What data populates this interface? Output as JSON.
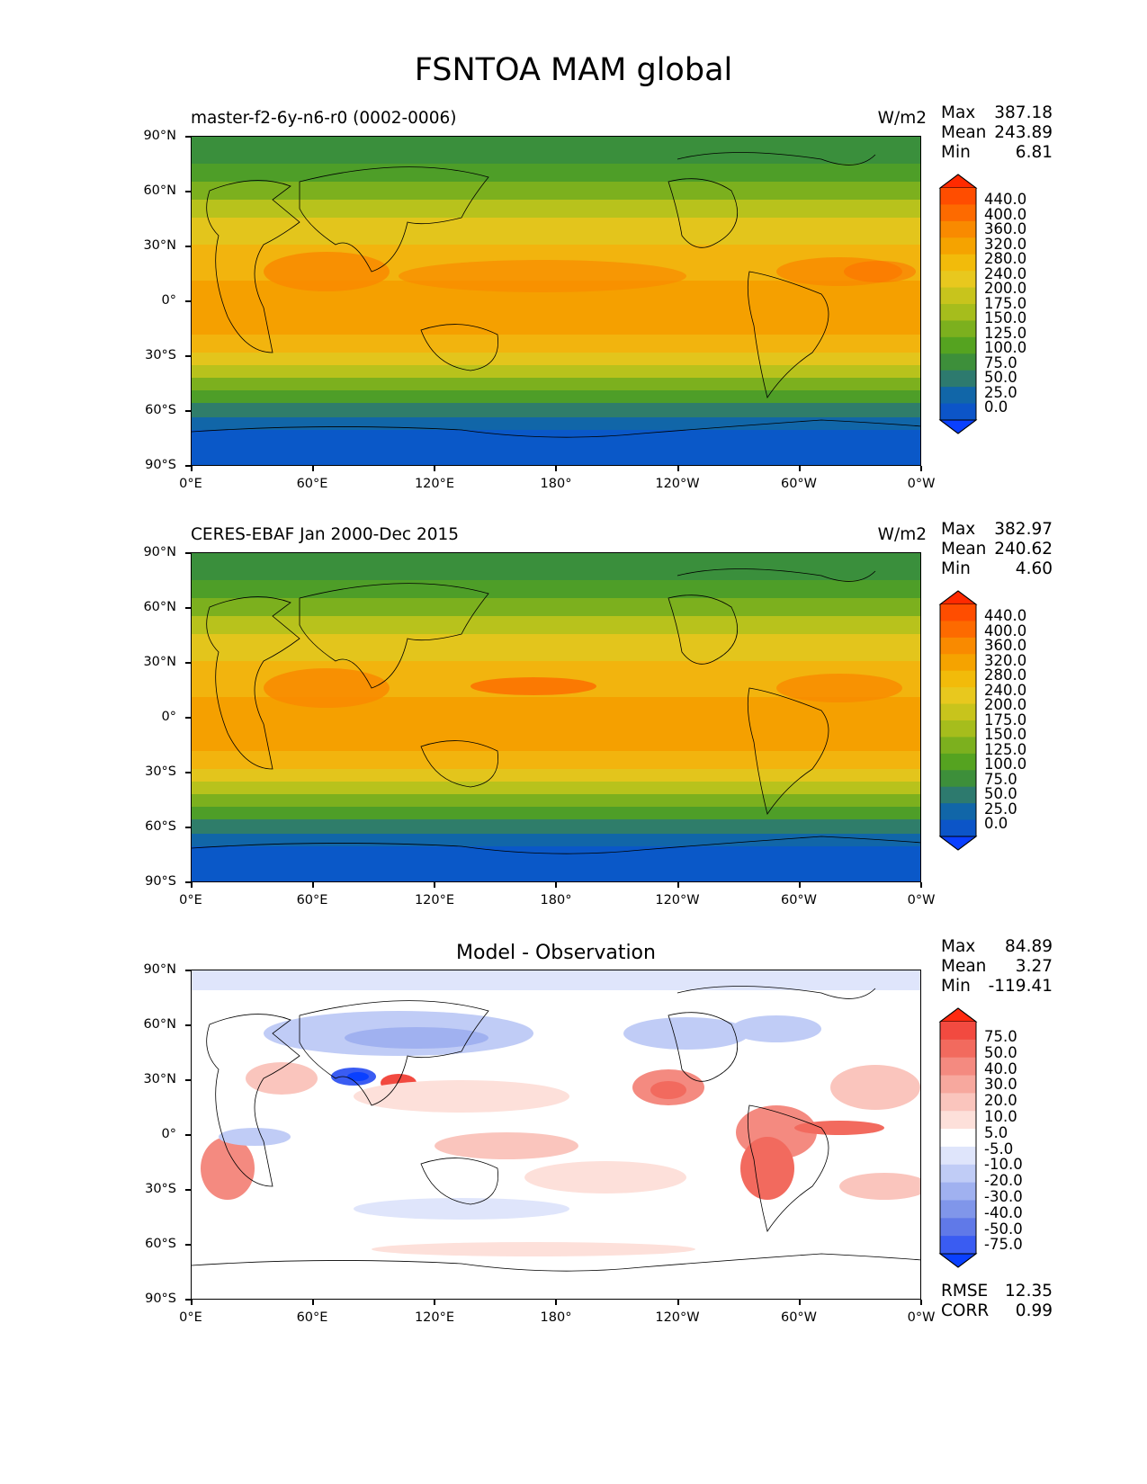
{
  "figure": {
    "title": "FSNTOA MAM global"
  },
  "axes": {
    "lat_ticks": [
      "90°N",
      "60°N",
      "30°N",
      "0°",
      "30°S",
      "60°S",
      "90°S"
    ],
    "lon_ticks": [
      "0°E",
      "60°E",
      "120°E",
      "180°",
      "120°W",
      "60°W",
      "0°W"
    ]
  },
  "panels": [
    {
      "id": "model",
      "title": "master-f2-6y-n6-r0 (0002-0006)",
      "units": "W/m2",
      "stats": {
        "max_label": "Max",
        "max": "387.18",
        "mean_label": "Mean",
        "mean": "243.89",
        "min_label": "Min",
        "min": "6.81"
      },
      "colorbar": {
        "levels": [
          "440.0",
          "400.0",
          "360.0",
          "320.0",
          "280.0",
          "240.0",
          "200.0",
          "175.0",
          "150.0",
          "125.0",
          "100.0",
          "75.0",
          "50.0",
          "25.0",
          "0.0"
        ],
        "colors": [
          "#ff2a00",
          "#ff4d00",
          "#fd6a00",
          "#f98a00",
          "#f5a300",
          "#f2bb0a",
          "#e8c81e",
          "#c8c41c",
          "#a6bd1c",
          "#7cb01e",
          "#55a320",
          "#3d8f3a",
          "#2d7a6e",
          "#1166a8",
          "#0c55c8",
          "#0a40ff"
        ]
      }
    },
    {
      "id": "obs",
      "title": "CERES-EBAF Jan 2000-Dec 2015",
      "units": "W/m2",
      "stats": {
        "max_label": "Max",
        "max": "382.97",
        "mean_label": "Mean",
        "mean": "240.62",
        "min_label": "Min",
        "min": "4.60"
      },
      "colorbar": {
        "levels": [
          "440.0",
          "400.0",
          "360.0",
          "320.0",
          "280.0",
          "240.0",
          "200.0",
          "175.0",
          "150.0",
          "125.0",
          "100.0",
          "75.0",
          "50.0",
          "25.0",
          "0.0"
        ],
        "colors": [
          "#ff2a00",
          "#ff4d00",
          "#fd6a00",
          "#f98a00",
          "#f5a300",
          "#f2bb0a",
          "#e8c81e",
          "#c8c41c",
          "#a6bd1c",
          "#7cb01e",
          "#55a320",
          "#3d8f3a",
          "#2d7a6e",
          "#1166a8",
          "#0c55c8",
          "#0a40ff"
        ]
      }
    },
    {
      "id": "diff",
      "title": "Model - Observation",
      "units": "",
      "stats": {
        "max_label": "Max",
        "max": "84.89",
        "mean_label": "Mean",
        "mean": "3.27",
        "min_label": "Min",
        "min": "-119.41"
      },
      "extra_stats": {
        "rmse_label": "RMSE",
        "rmse": "12.35",
        "corr_label": "CORR",
        "corr": "0.99"
      },
      "colorbar": {
        "levels": [
          "75.0",
          "50.0",
          "40.0",
          "30.0",
          "20.0",
          "10.0",
          "5.0",
          "-5.0",
          "-10.0",
          "-20.0",
          "-30.0",
          "-40.0",
          "-50.0",
          "-75.0"
        ],
        "colors": [
          "#ff2a10",
          "#f24a40",
          "#f26a5e",
          "#f48a80",
          "#f7a89e",
          "#fac5bd",
          "#fde0da",
          "#ffffff",
          "#dfe5fb",
          "#c0ccf6",
          "#a0b1f0",
          "#8096ea",
          "#6079e8",
          "#3a5cf2",
          "#0a40ff"
        ]
      }
    }
  ]
}
